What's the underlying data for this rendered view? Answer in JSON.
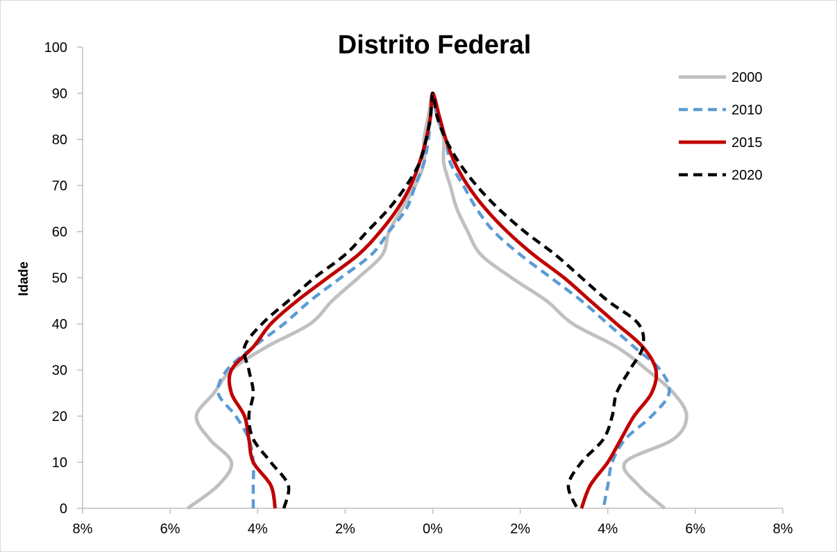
{
  "chart_data": {
    "type": "line",
    "title": "Distrito Federal",
    "ylabel": "Idade",
    "xlabel": "",
    "x_orientation": "population pyramid: left half = one sex, right half = other sex; x = % share of population",
    "xlim": [
      -8,
      8
    ],
    "ylim": [
      0,
      100
    ],
    "x_tick_labels": [
      "8%",
      "6%",
      "4%",
      "2%",
      "0%",
      "2%",
      "4%",
      "6%",
      "8%"
    ],
    "y_ticks": [
      0,
      10,
      20,
      30,
      40,
      50,
      60,
      70,
      80,
      90,
      100
    ],
    "grid": false,
    "legend_position": "top-right",
    "ages": [
      0,
      5,
      10,
      15,
      20,
      25,
      30,
      35,
      40,
      45,
      50,
      55,
      60,
      65,
      70,
      75,
      80,
      85,
      90
    ],
    "series": [
      {
        "name": "2000",
        "color": "#c0c0c0",
        "dash": "solid",
        "left": [
          5.6,
          4.9,
          4.6,
          5.1,
          5.4,
          5.0,
          4.6,
          3.8,
          2.8,
          2.3,
          1.7,
          1.15,
          1.0,
          0.7,
          0.4,
          0.2,
          0.2,
          0.1,
          0.0
        ],
        "right": [
          5.3,
          4.7,
          4.4,
          5.5,
          5.8,
          5.5,
          4.9,
          4.2,
          3.2,
          2.6,
          1.8,
          1.1,
          0.8,
          0.55,
          0.4,
          0.25,
          0.25,
          0.1,
          0.0
        ]
      },
      {
        "name": "2010",
        "color": "#5b9bd5",
        "dash": "dashed",
        "left": [
          4.1,
          4.1,
          4.1,
          4.2,
          4.5,
          4.9,
          4.7,
          4.1,
          3.4,
          2.8,
          2.1,
          1.4,
          1.0,
          0.6,
          0.4,
          0.2,
          0.1,
          0.05,
          0.0
        ],
        "right": [
          3.9,
          4.0,
          4.1,
          4.4,
          5.0,
          5.4,
          5.2,
          4.6,
          4.0,
          3.4,
          2.7,
          2.0,
          1.4,
          1.0,
          0.7,
          0.4,
          0.3,
          0.1,
          0.0
        ]
      },
      {
        "name": "2015",
        "color": "#c00000",
        "dash": "solid",
        "left": [
          3.6,
          3.7,
          4.1,
          4.2,
          4.3,
          4.6,
          4.6,
          4.1,
          3.7,
          3.1,
          2.4,
          1.7,
          1.2,
          0.8,
          0.5,
          0.3,
          0.15,
          0.05,
          0.0
        ],
        "right": [
          3.4,
          3.6,
          4.0,
          4.3,
          4.6,
          5.0,
          5.1,
          4.8,
          4.2,
          3.6,
          3.0,
          2.3,
          1.7,
          1.2,
          0.8,
          0.5,
          0.3,
          0.15,
          0.0
        ]
      },
      {
        "name": "2020",
        "color": "#000000",
        "dash": "dashed",
        "left": [
          3.4,
          3.3,
          3.7,
          4.1,
          4.2,
          4.1,
          4.2,
          4.3,
          3.9,
          3.3,
          2.7,
          2.0,
          1.5,
          1.0,
          0.6,
          0.3,
          0.15,
          0.05,
          0.0
        ],
        "right": [
          3.3,
          3.1,
          3.4,
          3.9,
          4.1,
          4.2,
          4.5,
          4.8,
          4.7,
          4.0,
          3.4,
          2.8,
          2.1,
          1.5,
          1.0,
          0.6,
          0.3,
          0.1,
          0.0
        ]
      }
    ]
  }
}
